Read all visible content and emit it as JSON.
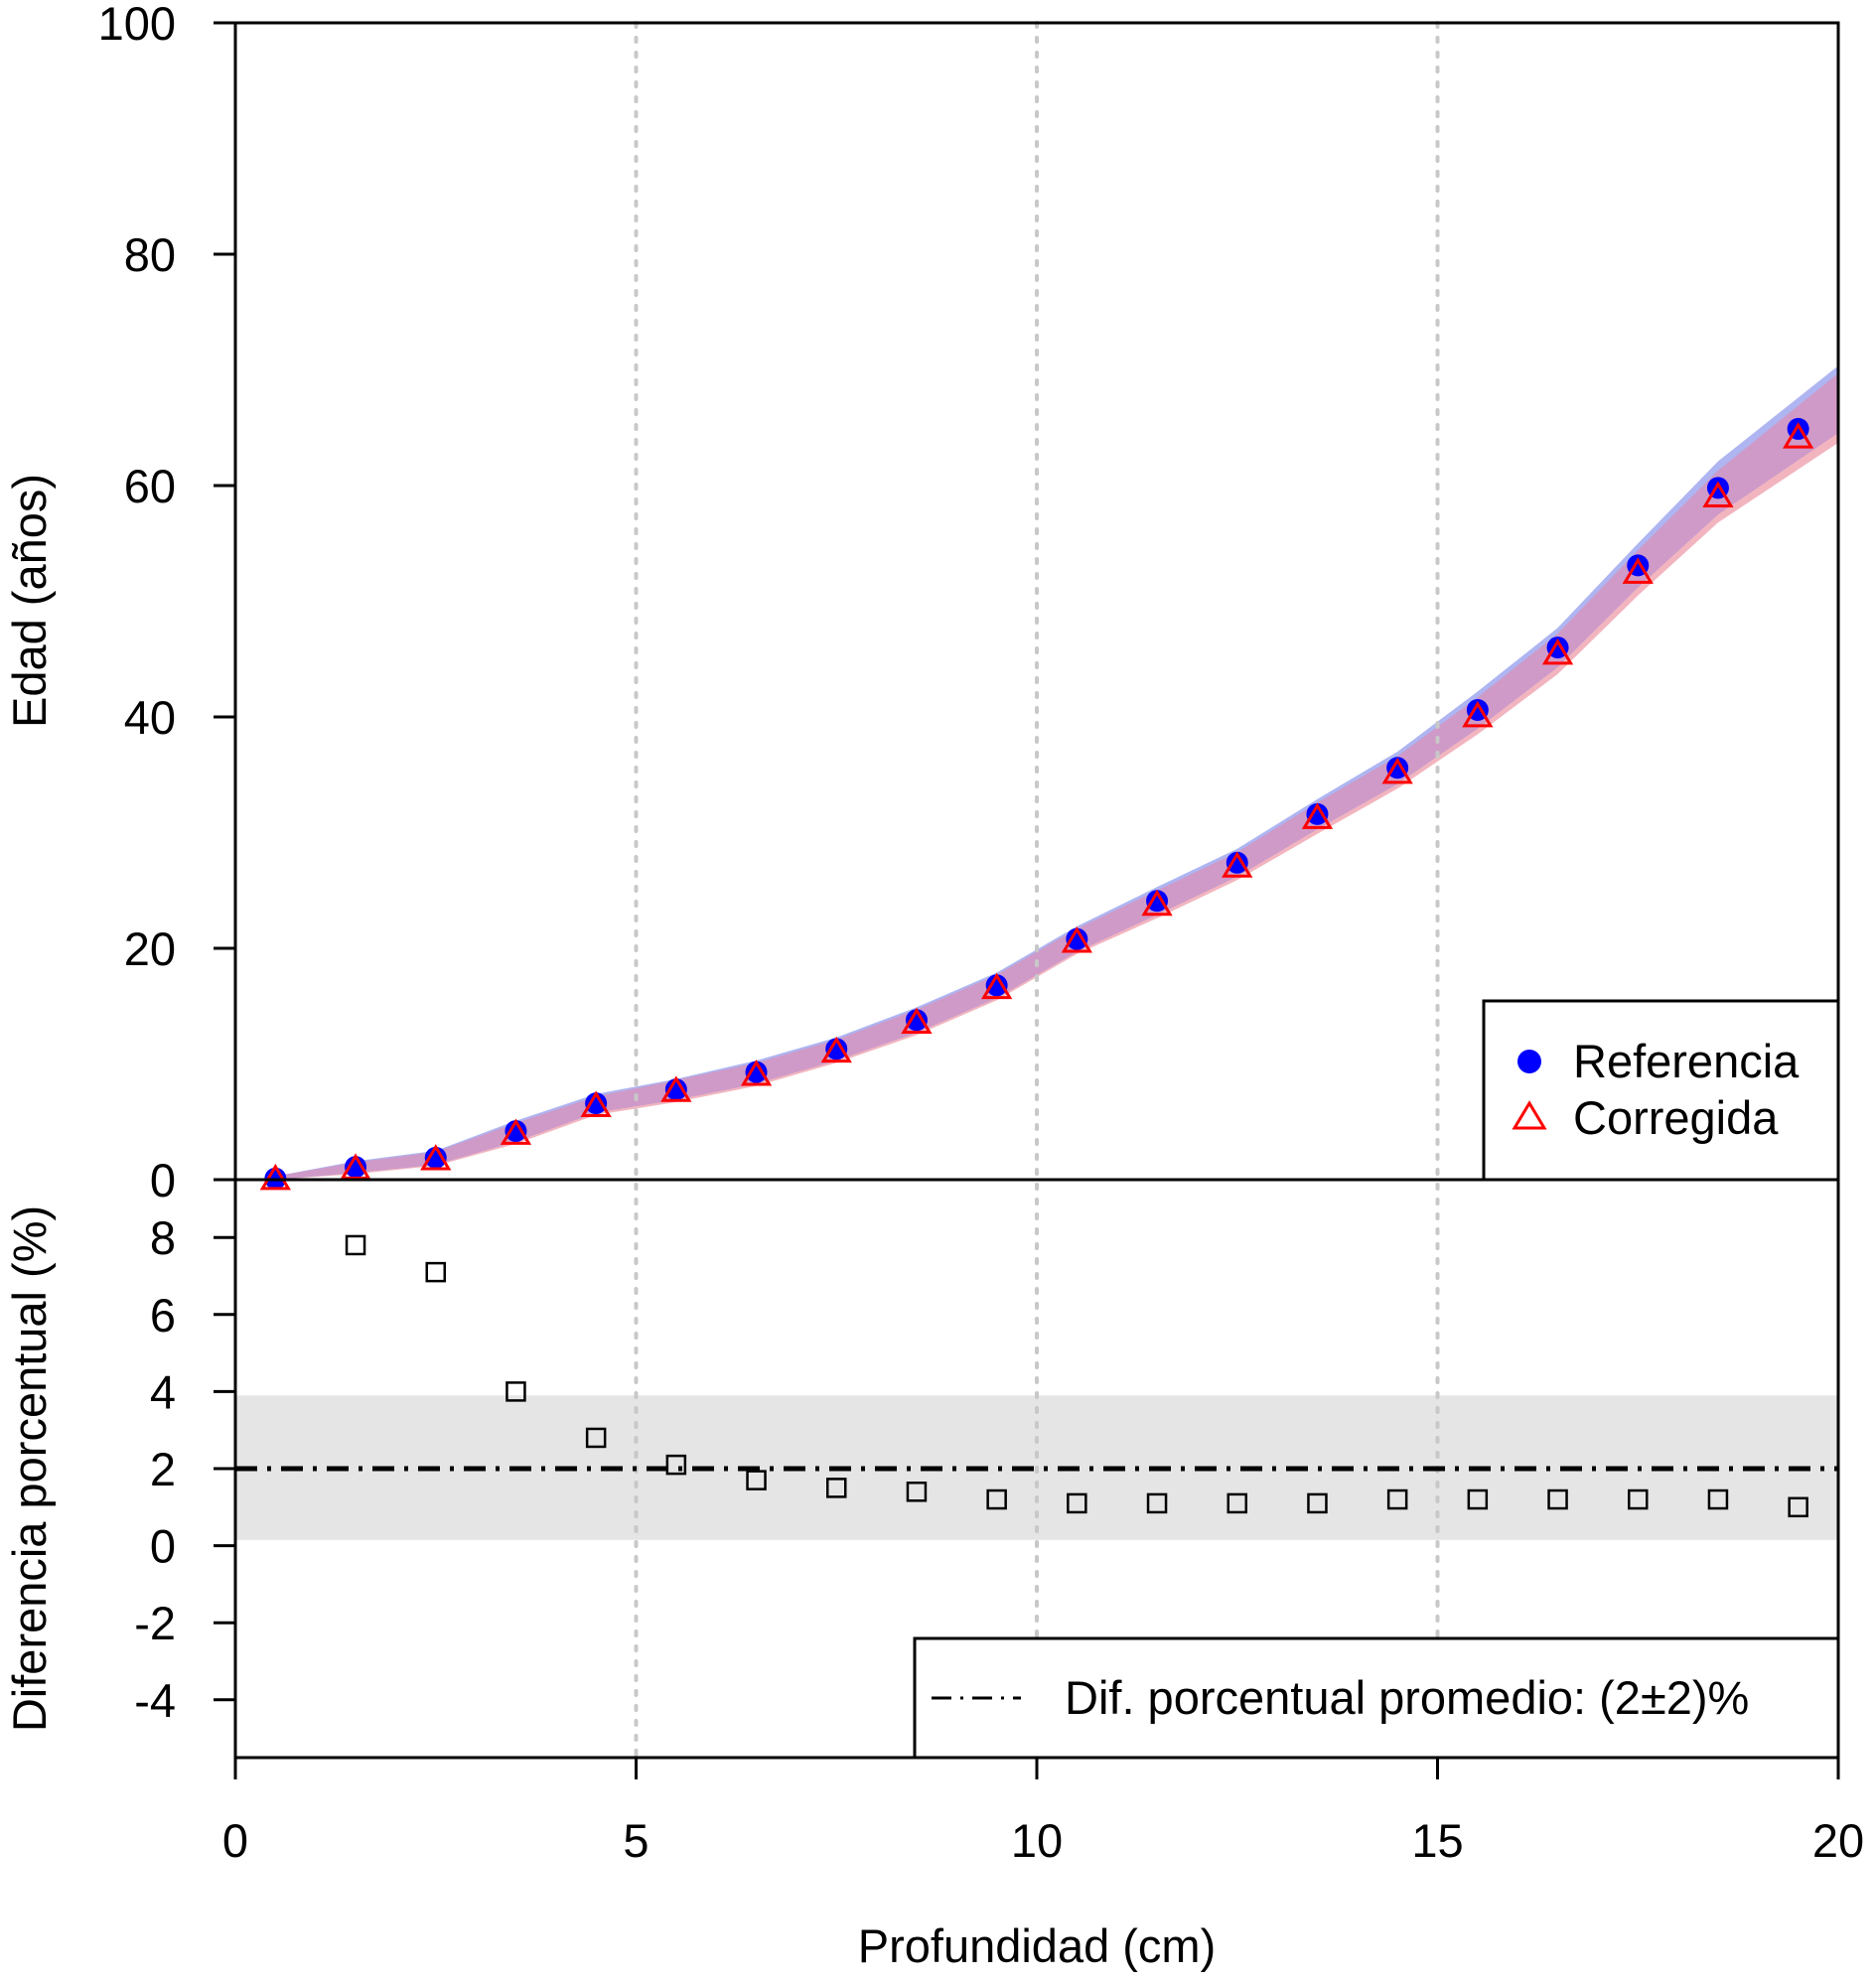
{
  "chart_data": [
    {
      "type": "scatter",
      "panel": "top",
      "xlabel": "",
      "ylabel": "Edad (años)",
      "xlim": [
        0,
        20
      ],
      "ylim": [
        0,
        100
      ],
      "yticks": [
        0,
        20,
        40,
        60,
        80,
        100
      ],
      "vertical_reference_lines": [
        5,
        10,
        15
      ],
      "legend_position": "bottom-right",
      "x": [
        0.5,
        1.5,
        2.5,
        3.5,
        4.5,
        5.5,
        6.5,
        7.5,
        8.5,
        9.5,
        10.5,
        11.5,
        12.5,
        13.5,
        14.5,
        15.5,
        16.5,
        17.5,
        18.5,
        19.5
      ],
      "series": [
        {
          "name": "Referencia",
          "marker": "filled-circle",
          "color": "#0000ff",
          "values": [
            0.1,
            1.1,
            1.9,
            4.2,
            6.6,
            7.8,
            9.3,
            11.3,
            13.8,
            16.8,
            20.8,
            24.1,
            27.4,
            31.6,
            35.6,
            40.6,
            46.0,
            53.1,
            59.8,
            64.9
          ],
          "band_lower": [
            0.0,
            0.6,
            1.3,
            3.3,
            5.8,
            6.9,
            8.3,
            10.3,
            12.7,
            15.7,
            19.7,
            22.9,
            26.2,
            30.3,
            34.2,
            39.0,
            44.3,
            51.2,
            57.5,
            62.2
          ],
          "band_upper": [
            0.3,
            1.6,
            2.5,
            5.1,
            7.4,
            8.7,
            10.3,
            12.3,
            14.9,
            17.9,
            21.9,
            25.3,
            28.6,
            32.9,
            37.0,
            42.2,
            47.7,
            55.0,
            62.1,
            67.6
          ]
        },
        {
          "name": "Corregida",
          "marker": "open-triangle",
          "color": "#ff0000",
          "values": [
            0.1,
            1.0,
            1.8,
            4.0,
            6.4,
            7.7,
            9.1,
            11.1,
            13.6,
            16.6,
            20.6,
            23.8,
            27.1,
            31.3,
            35.2,
            40.1,
            45.5,
            52.5,
            59.1,
            64.2
          ],
          "band_lower": [
            0.0,
            0.5,
            1.2,
            3.1,
            5.6,
            6.7,
            8.1,
            10.1,
            12.5,
            15.5,
            19.5,
            22.6,
            25.9,
            29.9,
            33.8,
            38.5,
            43.7,
            50.5,
            56.8,
            61.4
          ],
          "band_upper": [
            0.3,
            1.5,
            2.4,
            4.9,
            7.2,
            8.6,
            10.1,
            12.1,
            14.7,
            17.7,
            21.7,
            25.0,
            28.3,
            32.6,
            36.6,
            41.7,
            47.2,
            54.4,
            61.3,
            66.9
          ]
        }
      ],
      "band_colors": {
        "Referencia": "#a0a8ee",
        "Corregida": "#f0a8b4",
        "overlap": "#cf9ac8"
      }
    },
    {
      "type": "scatter",
      "panel": "bottom",
      "xlabel": "Profundidad (cm)",
      "ylabel": "Diferencia porcentual (%)",
      "xlim": [
        0,
        20
      ],
      "ylim": [
        -5.5,
        9.5
      ],
      "xticks": [
        0,
        5,
        10,
        15,
        20
      ],
      "yticks": [
        -4,
        -2,
        0,
        2,
        4,
        6,
        8
      ],
      "vertical_reference_lines": [
        5,
        10,
        15
      ],
      "legend_position": "bottom-right",
      "series": [
        {
          "name": "",
          "marker": "open-square",
          "color": "#000000",
          "x": [
            1.5,
            2.5,
            3.5,
            4.5,
            5.5,
            6.5,
            7.5,
            8.5,
            9.5,
            10.5,
            11.5,
            12.5,
            13.5,
            14.5,
            15.5,
            16.5,
            17.5,
            18.5,
            19.5
          ],
          "values": [
            7.8,
            7.1,
            4.0,
            2.8,
            2.1,
            1.7,
            1.5,
            1.4,
            1.2,
            1.1,
            1.1,
            1.1,
            1.1,
            1.2,
            1.2,
            1.2,
            1.2,
            1.2,
            1.0
          ]
        }
      ],
      "mean_line": {
        "value": 2,
        "style": "dash-dot",
        "label": "Dif. porcentual promedio: (2",
        "label_pm": "±",
        "label_end": "2)%"
      },
      "uncertainty_band": {
        "lower": 0.15,
        "upper": 3.9,
        "color": "#e5e5e5"
      }
    }
  ]
}
